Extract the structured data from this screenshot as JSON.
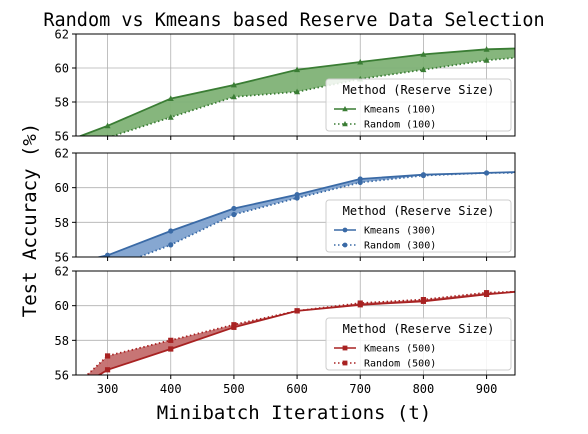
{
  "chart_data": {
    "type": "line",
    "title": "Random vs Kmeans based Reserve Data Selection",
    "xlabel": "Minibatch Iterations (t)",
    "ylabel": "Test Accuracy (%)",
    "xlim": [
      250,
      945
    ],
    "xticks": [
      300,
      400,
      500,
      600,
      700,
      800,
      900
    ],
    "grid": true,
    "panels": [
      {
        "name": "reserve-100",
        "ylim": [
          56,
          62
        ],
        "yticks": [
          56,
          58,
          60,
          62
        ],
        "color": "#3a7d34",
        "fill": "#7fb276",
        "legend_title": "Method (Reserve Size)",
        "legend_position": "lower-right",
        "x": [
          250,
          300,
          400,
          500,
          600,
          700,
          800,
          900,
          945
        ],
        "series": [
          {
            "name": "Kmeans (100)",
            "style": "solid",
            "values": [
              55.9,
              56.6,
              58.2,
              59.0,
              59.9,
              60.35,
              60.8,
              61.1,
              61.15
            ]
          },
          {
            "name": "Random (100)",
            "style": "dotted",
            "values": [
              55.0,
              55.9,
              57.1,
              58.3,
              58.6,
              59.35,
              59.9,
              60.45,
              60.6
            ]
          }
        ]
      },
      {
        "name": "reserve-300",
        "ylim": [
          56,
          62
        ],
        "yticks": [
          56,
          58,
          60,
          62
        ],
        "color": "#3a6aa6",
        "fill": "#7fa2cf",
        "legend_title": "Method (Reserve Size)",
        "legend_position": "lower-right",
        "x": [
          250,
          300,
          400,
          500,
          600,
          700,
          800,
          900,
          945
        ],
        "series": [
          {
            "name": "Kmeans (300)",
            "style": "solid",
            "values": [
              55.7,
              56.1,
              57.5,
              58.8,
              59.6,
              60.5,
              60.75,
              60.85,
              60.9
            ]
          },
          {
            "name": "Random (300)",
            "style": "dotted",
            "values": [
              54.8,
              55.3,
              56.7,
              58.45,
              59.4,
              60.3,
              60.7,
              60.85,
              60.85
            ]
          }
        ]
      },
      {
        "name": "reserve-500",
        "ylim": [
          56,
          62
        ],
        "yticks": [
          56,
          58,
          60,
          62
        ],
        "color": "#a82222",
        "fill": "#c46e6e",
        "legend_title": "Method (Reserve Size)",
        "legend_position": "lower-right",
        "x": [
          250,
          300,
          400,
          500,
          600,
          700,
          800,
          900,
          945
        ],
        "series": [
          {
            "name": "Kmeans (500)",
            "style": "solid",
            "values": [
              55.2,
              56.3,
              57.5,
              58.75,
              59.7,
              60.05,
              60.25,
              60.65,
              60.8
            ]
          },
          {
            "name": "Random (500)",
            "style": "dotted",
            "values": [
              55.4,
              57.1,
              58.0,
              58.9,
              59.7,
              60.15,
              60.35,
              60.75,
              60.8
            ]
          }
        ]
      }
    ]
  }
}
